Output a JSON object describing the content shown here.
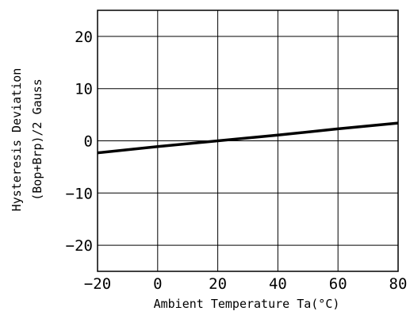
{
  "chart_data": {
    "type": "line",
    "title": "",
    "xlabel": "Ambient Temperature Ta(°C)",
    "ylabel_line1": "Hysteresis Deviation",
    "ylabel_line2": "(Bop+Brp)/2 Gauss",
    "xlim": [
      -20,
      80
    ],
    "ylim": [
      -25,
      25
    ],
    "x_ticks": [
      -20,
      0,
      20,
      40,
      60,
      80
    ],
    "y_ticks": [
      20,
      10,
      0,
      -10,
      -20
    ],
    "x_tick_labels": [
      "−20",
      "0",
      "20",
      "40",
      "60",
      "80"
    ],
    "y_tick_labels": [
      "20",
      "10",
      "0",
      "−10",
      "−20"
    ],
    "grid": true,
    "series": [
      {
        "x": [
          -20,
          0,
          20,
          40,
          60,
          80
        ],
        "y": [
          -2.3,
          -1.1,
          0.0,
          1.1,
          2.3,
          3.4
        ]
      }
    ]
  },
  "colors": {
    "line": "#000000",
    "grid": "#000000",
    "background": "#ffffff"
  }
}
